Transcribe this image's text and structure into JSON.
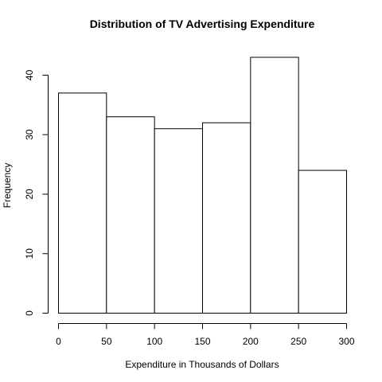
{
  "chart_data": {
    "type": "bar",
    "title": "Distribution of TV Advertising Expenditure",
    "xlabel": "Expenditure in Thousands of Dollars",
    "ylabel": "Frequency",
    "bins": [
      {
        "from": 0,
        "to": 50,
        "count": 37
      },
      {
        "from": 50,
        "to": 100,
        "count": 33
      },
      {
        "from": 100,
        "to": 150,
        "count": 31
      },
      {
        "from": 150,
        "to": 200,
        "count": 32
      },
      {
        "from": 200,
        "to": 250,
        "count": 43
      },
      {
        "from": 250,
        "to": 300,
        "count": 24
      }
    ],
    "x_ticks": [
      "0",
      "50",
      "100",
      "150",
      "200",
      "250",
      "300"
    ],
    "y_ticks": [
      "0",
      "10",
      "20",
      "30",
      "40"
    ],
    "xlim": [
      0,
      300
    ],
    "ylim": [
      0,
      43
    ],
    "grid": false,
    "bar_fill": "#ffffff",
    "bar_stroke": "#000000"
  }
}
